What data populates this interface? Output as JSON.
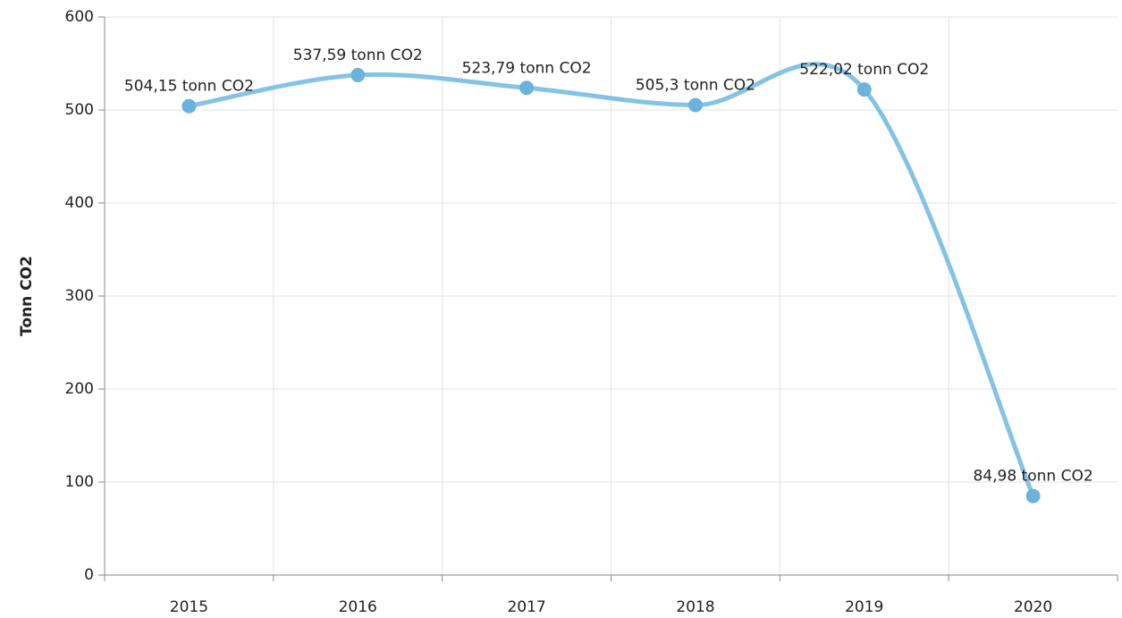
{
  "chart_data": {
    "type": "line",
    "y_label": "Tonn CO2",
    "categories": [
      "2015",
      "2016",
      "2017",
      "2018",
      "2019",
      "2020"
    ],
    "series": [
      {
        "name": "Tonn CO2",
        "color": "#84c3e3",
        "marker_color": "#6bb3dc",
        "values": [
          504.15,
          537.59,
          523.79,
          505.3,
          522.02,
          84.98
        ],
        "value_labels": [
          "504,15 tonn CO2",
          "537,59 tonn CO2",
          "523,79 tonn CO2",
          "505,3 tonn CO2",
          "522,02 tonn CO2",
          "84,98 tonn CO2"
        ]
      }
    ],
    "ylim": [
      0,
      600
    ],
    "yticks": [
      0,
      100,
      200,
      300,
      400,
      500,
      600
    ],
    "grid": true,
    "smooth": true
  }
}
